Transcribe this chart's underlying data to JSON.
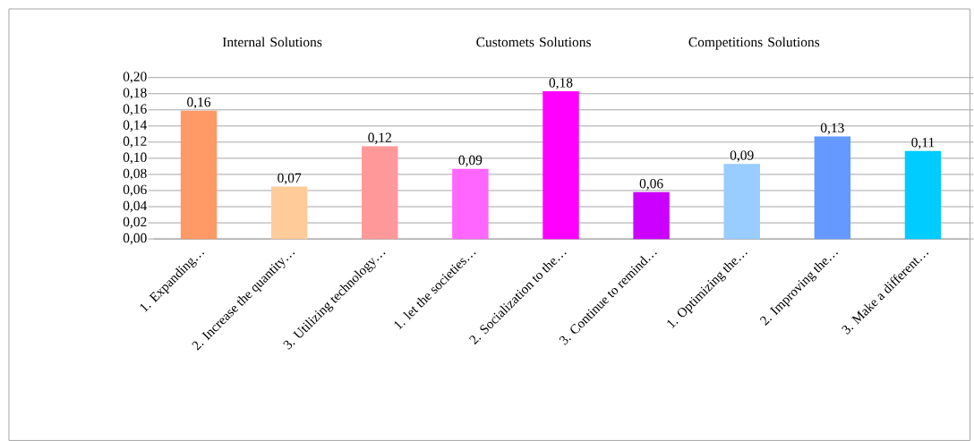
{
  "chart_data": {
    "type": "bar",
    "categories": [
      "1. Expanding…",
      "2. Increase the quantity…",
      "3. Utilizing technology…",
      "1. let the societies…",
      "2. Socialization to the…",
      "3. Continue to remind…",
      "1. Optimizing the…",
      "2. Improving the…",
      "3. Make a different…"
    ],
    "values": [
      0.159,
      0.065,
      0.115,
      0.087,
      0.183,
      0.058,
      0.093,
      0.127,
      0.109
    ],
    "value_labels": [
      "0,16",
      "0,07",
      "0,12",
      "0,09",
      "0,18",
      "0,06",
      "0,09",
      "0,13",
      "0,11"
    ],
    "colors": [
      "#ff9966",
      "#ffcc99",
      "#ff9999",
      "#ff66ff",
      "#ff00ff",
      "#cc00ff",
      "#99ccff",
      "#6699ff",
      "#00ccff"
    ],
    "annotations": [
      "Internal Solutions",
      "Customets Solutions",
      "Competitions Solutions"
    ],
    "ylim": [
      0,
      0.2
    ],
    "yticks": [
      {
        "value": 0,
        "label": "0,00"
      },
      {
        "value": 0.02,
        "label": "0,02"
      },
      {
        "value": 0.04,
        "label": "0,04"
      },
      {
        "value": 0.06,
        "label": "0,06"
      },
      {
        "value": 0.08,
        "label": "0,08"
      },
      {
        "value": 0.1,
        "label": "0,10"
      },
      {
        "value": 0.12,
        "label": "0,12"
      },
      {
        "value": 0.14,
        "label": "0,14"
      },
      {
        "value": 0.16,
        "label": "0,16"
      },
      {
        "value": 0.18,
        "label": "0,18"
      },
      {
        "value": 0.2,
        "label": "0,20"
      }
    ],
    "grid": "y"
  }
}
